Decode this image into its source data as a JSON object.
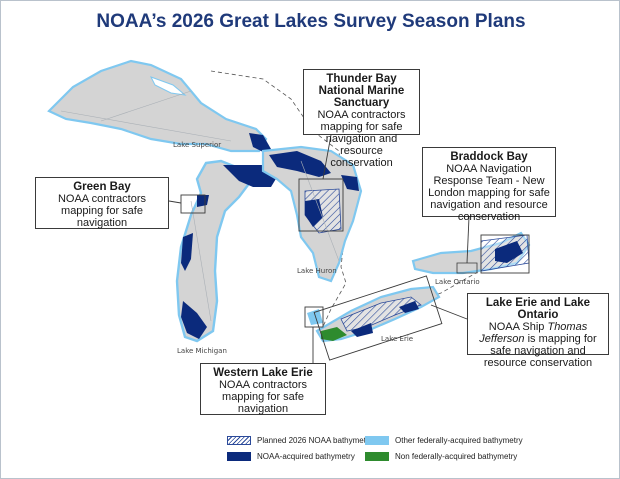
{
  "title": "NOAA’s 2026 Great Lakes Survey Season Plans",
  "lake_labels": {
    "superior": "Lake Superior",
    "michigan": "Lake Michigan",
    "huron": "Lake Huron",
    "erie": "Lake Erie",
    "ontario": "Lake Ontario"
  },
  "callouts": {
    "thunder_bay": {
      "title": "Thunder Bay National Marine Sanctuary",
      "body": "NOAA contractors mapping for safe navigation and resource conservation"
    },
    "green_bay": {
      "title": "Green Bay",
      "body": "NOAA contractors mapping for safe navigation"
    },
    "braddock_bay": {
      "title": "Braddock Bay",
      "body": "NOAA Navigation Response Team - New London mapping for safe navigation and resource conservation"
    },
    "erie_ontario": {
      "title": "Lake Erie and Lake Ontario",
      "body_prefix": "NOAA Ship",
      "body_italic": "Thomas Jefferson",
      "body_suffix": "is mapping for safe navigation and resource conservation"
    },
    "western_erie": {
      "title": "Western Lake Erie",
      "body": "NOAA contractors mapping for safe navigation"
    }
  },
  "legend": [
    {
      "label": "Planned 2026 NOAA bathymetry",
      "swatch": "hatched",
      "color": "#2b4a9a"
    },
    {
      "label": "Other federally-acquired bathymetry",
      "swatch": "solid",
      "color": "#7fc8f0"
    },
    {
      "label": "NOAA-acquired bathymetry",
      "swatch": "solid",
      "color": "#0b2a7c"
    },
    {
      "label": "Non federally-acquired bathymetry",
      "swatch": "solid",
      "color": "#2e8b2e"
    }
  ],
  "colors": {
    "water": "#d4d4d4",
    "noaa": "#0b2a7c",
    "other_federal": "#7fc8f0",
    "non_federal": "#2e8b2e",
    "planned_hatch": "#2b4a9a",
    "title": "#1f3a7a"
  }
}
